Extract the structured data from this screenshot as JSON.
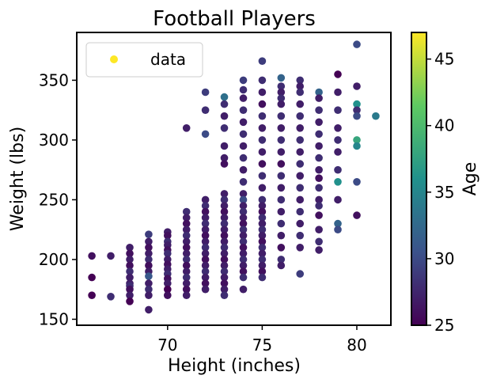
{
  "chart_data": {
    "type": "scatter",
    "title": "Football Players",
    "xlabel": "Height (inches)",
    "ylabel": "Weight (lbs)",
    "xlim": [
      65.2,
      81.8
    ],
    "ylim": [
      145,
      390
    ],
    "xticks": [
      70,
      75,
      80
    ],
    "yticks": [
      150,
      200,
      250,
      300,
      350
    ],
    "grid": false,
    "legend": {
      "position": "top-left",
      "entries": [
        "data"
      ]
    },
    "colorbar": {
      "label": "Age",
      "range": [
        25,
        47
      ],
      "ticks": [
        25,
        30,
        35,
        40,
        45
      ],
      "colormap": "viridis"
    },
    "series": [
      {
        "name": "data",
        "points": [
          [
            66,
            203,
            26
          ],
          [
            66,
            185,
            25
          ],
          [
            66,
            170,
            25
          ],
          [
            67,
            203,
            27
          ],
          [
            67,
            169,
            28
          ],
          [
            68,
            210,
            27
          ],
          [
            68,
            205,
            26
          ],
          [
            68,
            200,
            27
          ],
          [
            68,
            195,
            26
          ],
          [
            68,
            190,
            28
          ],
          [
            68,
            185,
            27
          ],
          [
            68,
            180,
            27
          ],
          [
            68,
            178,
            28
          ],
          [
            68,
            175,
            26
          ],
          [
            68,
            170,
            27
          ],
          [
            68,
            165,
            25
          ],
          [
            69,
            221,
            29
          ],
          [
            69,
            215,
            27
          ],
          [
            69,
            210,
            26
          ],
          [
            69,
            205,
            27
          ],
          [
            69,
            200,
            28
          ],
          [
            69,
            195,
            26
          ],
          [
            69,
            190,
            27
          ],
          [
            69,
            186,
            31
          ],
          [
            69,
            180,
            27
          ],
          [
            69,
            175,
            28
          ],
          [
            69,
            170,
            27
          ],
          [
            69,
            158,
            27
          ],
          [
            70,
            223,
            27
          ],
          [
            70,
            220,
            26
          ],
          [
            70,
            215,
            28
          ],
          [
            70,
            212,
            27
          ],
          [
            70,
            208,
            26
          ],
          [
            70,
            205,
            28
          ],
          [
            70,
            200,
            27
          ],
          [
            70,
            196,
            26
          ],
          [
            70,
            192,
            27
          ],
          [
            70,
            188,
            28
          ],
          [
            70,
            184,
            26
          ],
          [
            70,
            180,
            27
          ],
          [
            70,
            175,
            25
          ],
          [
            70,
            170,
            26
          ],
          [
            71,
            310,
            27
          ],
          [
            71,
            240,
            28
          ],
          [
            71,
            235,
            27
          ],
          [
            71,
            230,
            26
          ],
          [
            71,
            225,
            27
          ],
          [
            71,
            220,
            28
          ],
          [
            71,
            215,
            27
          ],
          [
            71,
            210,
            26
          ],
          [
            71,
            205,
            27
          ],
          [
            71,
            200,
            28
          ],
          [
            71,
            195,
            26
          ],
          [
            71,
            190,
            27
          ],
          [
            71,
            185,
            28
          ],
          [
            71,
            180,
            27
          ],
          [
            71,
            175,
            26
          ],
          [
            71,
            170,
            27
          ],
          [
            72,
            340,
            29
          ],
          [
            72,
            325,
            28
          ],
          [
            72,
            305,
            30
          ],
          [
            72,
            250,
            27
          ],
          [
            72,
            245,
            28
          ],
          [
            72,
            240,
            26
          ],
          [
            72,
            235,
            27
          ],
          [
            72,
            230,
            28
          ],
          [
            72,
            225,
            27
          ],
          [
            72,
            220,
            26
          ],
          [
            72,
            215,
            27
          ],
          [
            72,
            210,
            28
          ],
          [
            72,
            205,
            27
          ],
          [
            72,
            200,
            26
          ],
          [
            72,
            195,
            27
          ],
          [
            72,
            190,
            28
          ],
          [
            72,
            185,
            27
          ],
          [
            72,
            180,
            26
          ],
          [
            72,
            175,
            27
          ],
          [
            73,
            336,
            33
          ],
          [
            73,
            330,
            28
          ],
          [
            73,
            320,
            27
          ],
          [
            73,
            310,
            28
          ],
          [
            73,
            295,
            27
          ],
          [
            73,
            285,
            27
          ],
          [
            73,
            280,
            26
          ],
          [
            73,
            255,
            27
          ],
          [
            73,
            250,
            28
          ],
          [
            73,
            245,
            27
          ],
          [
            73,
            240,
            26
          ],
          [
            73,
            235,
            27
          ],
          [
            73,
            230,
            28
          ],
          [
            73,
            225,
            27
          ],
          [
            73,
            220,
            26
          ],
          [
            73,
            215,
            27
          ],
          [
            73,
            210,
            28
          ],
          [
            73,
            205,
            27
          ],
          [
            73,
            200,
            26
          ],
          [
            73,
            195,
            27
          ],
          [
            73,
            190,
            28
          ],
          [
            73,
            185,
            27
          ],
          [
            73,
            180,
            26
          ],
          [
            73,
            175,
            27
          ],
          [
            73,
            170,
            28
          ],
          [
            74,
            350,
            29
          ],
          [
            74,
            342,
            28
          ],
          [
            74,
            335,
            27
          ],
          [
            74,
            325,
            28
          ],
          [
            74,
            315,
            27
          ],
          [
            74,
            305,
            28
          ],
          [
            74,
            295,
            27
          ],
          [
            74,
            285,
            28
          ],
          [
            74,
            275,
            27
          ],
          [
            74,
            265,
            28
          ],
          [
            74,
            255,
            27
          ],
          [
            74,
            250,
            30
          ],
          [
            74,
            245,
            27
          ],
          [
            74,
            240,
            28
          ],
          [
            74,
            235,
            27
          ],
          [
            74,
            230,
            26
          ],
          [
            74,
            225,
            28
          ],
          [
            74,
            220,
            27
          ],
          [
            74,
            215,
            28
          ],
          [
            74,
            210,
            26
          ],
          [
            74,
            205,
            27
          ],
          [
            74,
            200,
            28
          ],
          [
            74,
            195,
            27
          ],
          [
            74,
            190,
            26
          ],
          [
            74,
            185,
            28
          ],
          [
            74,
            175,
            27
          ],
          [
            75,
            366,
            29
          ],
          [
            75,
            350,
            28
          ],
          [
            75,
            340,
            27
          ],
          [
            75,
            330,
            26
          ],
          [
            75,
            320,
            28
          ],
          [
            75,
            310,
            27
          ],
          [
            75,
            300,
            28
          ],
          [
            75,
            290,
            27
          ],
          [
            75,
            280,
            26
          ],
          [
            75,
            270,
            28
          ],
          [
            75,
            260,
            27
          ],
          [
            75,
            250,
            28
          ],
          [
            75,
            245,
            27
          ],
          [
            75,
            240,
            26
          ],
          [
            75,
            235,
            28
          ],
          [
            75,
            230,
            27
          ],
          [
            75,
            225,
            28
          ],
          [
            75,
            220,
            27
          ],
          [
            75,
            215,
            26
          ],
          [
            75,
            210,
            28
          ],
          [
            75,
            205,
            27
          ],
          [
            75,
            200,
            28
          ],
          [
            75,
            195,
            27
          ],
          [
            75,
            190,
            26
          ],
          [
            75,
            185,
            28
          ],
          [
            76,
            352,
            32
          ],
          [
            76,
            345,
            28
          ],
          [
            76,
            340,
            27
          ],
          [
            76,
            335,
            28
          ],
          [
            76,
            330,
            27
          ],
          [
            76,
            320,
            28
          ],
          [
            76,
            310,
            27
          ],
          [
            76,
            300,
            28
          ],
          [
            76,
            290,
            27
          ],
          [
            76,
            280,
            26
          ],
          [
            76,
            270,
            28
          ],
          [
            76,
            260,
            27
          ],
          [
            76,
            250,
            28
          ],
          [
            76,
            240,
            27
          ],
          [
            76,
            230,
            28
          ],
          [
            76,
            220,
            27
          ],
          [
            76,
            210,
            26
          ],
          [
            76,
            200,
            28
          ],
          [
            76,
            195,
            27
          ],
          [
            77,
            350,
            28
          ],
          [
            77,
            345,
            27
          ],
          [
            77,
            340,
            28
          ],
          [
            77,
            330,
            27
          ],
          [
            77,
            320,
            28
          ],
          [
            77,
            310,
            27
          ],
          [
            77,
            300,
            28
          ],
          [
            77,
            290,
            27
          ],
          [
            77,
            280,
            28
          ],
          [
            77,
            270,
            27
          ],
          [
            77,
            260,
            28
          ],
          [
            77,
            250,
            27
          ],
          [
            77,
            240,
            28
          ],
          [
            77,
            230,
            27
          ],
          [
            77,
            220,
            28
          ],
          [
            77,
            210,
            27
          ],
          [
            77,
            188,
            29
          ],
          [
            78,
            340,
            32
          ],
          [
            78,
            335,
            27
          ],
          [
            78,
            325,
            28
          ],
          [
            78,
            315,
            27
          ],
          [
            78,
            305,
            28
          ],
          [
            78,
            295,
            27
          ],
          [
            78,
            285,
            28
          ],
          [
            78,
            275,
            27
          ],
          [
            78,
            268,
            26
          ],
          [
            78,
            260,
            28
          ],
          [
            78,
            250,
            27
          ],
          [
            78,
            245,
            28
          ],
          [
            78,
            237,
            26
          ],
          [
            78,
            225,
            27
          ],
          [
            78,
            215,
            28
          ],
          [
            78,
            208,
            27
          ],
          [
            79,
            355,
            25
          ],
          [
            79,
            340,
            27
          ],
          [
            79,
            325,
            28
          ],
          [
            79,
            310,
            27
          ],
          [
            79,
            300,
            28
          ],
          [
            79,
            290,
            27
          ],
          [
            79,
            275,
            28
          ],
          [
            79,
            265,
            36
          ],
          [
            79,
            250,
            27
          ],
          [
            79,
            230,
            32
          ],
          [
            79,
            225,
            30
          ],
          [
            80,
            380,
            30
          ],
          [
            80,
            345,
            27
          ],
          [
            80,
            330,
            36
          ],
          [
            80,
            325,
            28
          ],
          [
            80,
            320,
            30
          ],
          [
            80,
            300,
            38
          ],
          [
            80,
            295,
            35
          ],
          [
            80,
            265,
            30
          ],
          [
            80,
            237,
            26
          ],
          [
            81,
            320,
            34
          ]
        ]
      }
    ]
  }
}
